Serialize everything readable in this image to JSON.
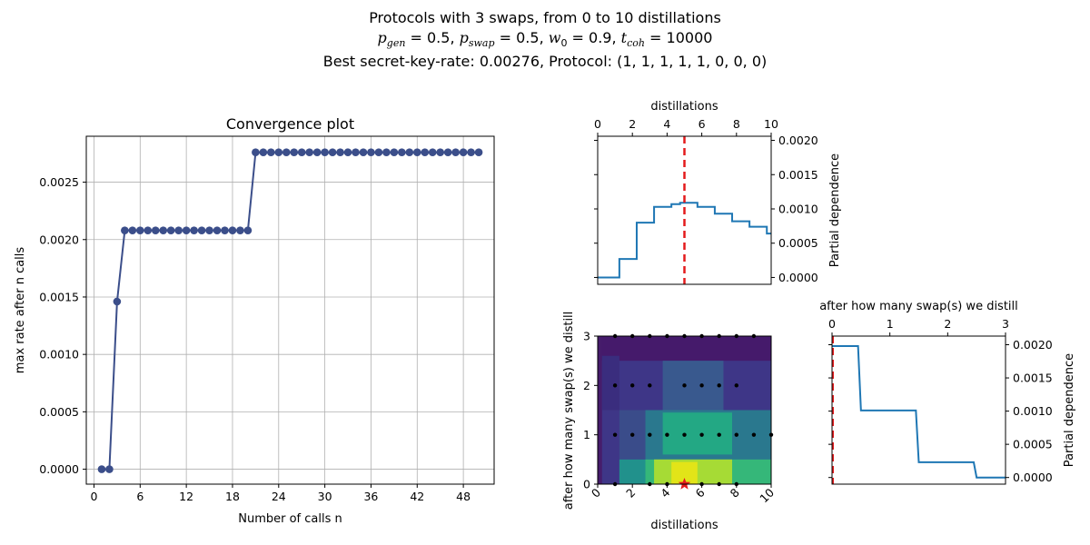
{
  "suptitle": {
    "line1": "Protocols with 3 swaps, from 0 to 10 distillations",
    "line2": "p_gen = 0.5, p_swap = 0.5, w_0 = 0.9, t_coh = 10000",
    "line3": "Best secret-key-rate: 0.00276, Protocol: (1, 1, 1, 1, 1, 0, 0, 0)"
  },
  "chart_data": [
    {
      "type": "line",
      "title": "Convergence plot",
      "xlabel": "Number of calls n",
      "ylabel": "max rate after n calls",
      "x": [
        1,
        2,
        3,
        4,
        5,
        6,
        7,
        8,
        9,
        10,
        11,
        12,
        13,
        14,
        15,
        16,
        17,
        18,
        19,
        20,
        21,
        22,
        23,
        24,
        25,
        26,
        27,
        28,
        29,
        30,
        31,
        32,
        33,
        34,
        35,
        36,
        37,
        38,
        39,
        40,
        41,
        42,
        43,
        44,
        45,
        46,
        47,
        48,
        49,
        50
      ],
      "y": [
        0,
        0,
        0.00146,
        0.00208,
        0.00208,
        0.00208,
        0.00208,
        0.00208,
        0.00208,
        0.00208,
        0.00208,
        0.00208,
        0.00208,
        0.00208,
        0.00208,
        0.00208,
        0.00208,
        0.00208,
        0.00208,
        0.00208,
        0.00276,
        0.00276,
        0.00276,
        0.00276,
        0.00276,
        0.00276,
        0.00276,
        0.00276,
        0.00276,
        0.00276,
        0.00276,
        0.00276,
        0.00276,
        0.00276,
        0.00276,
        0.00276,
        0.00276,
        0.00276,
        0.00276,
        0.00276,
        0.00276,
        0.00276,
        0.00276,
        0.00276,
        0.00276,
        0.00276,
        0.00276,
        0.00276,
        0.00276,
        0.00276
      ],
      "xlim": [
        -1,
        52
      ],
      "ylim": [
        -0.00013,
        0.0029
      ],
      "xticks": [
        0,
        6,
        12,
        18,
        24,
        30,
        36,
        42,
        48
      ],
      "yticks": [
        0,
        0.0005,
        0.001,
        0.0015,
        0.002,
        0.0025
      ],
      "ytick_labels": [
        "0.0000",
        "0.0005",
        "0.0010",
        "0.0015",
        "0.0020",
        "0.0025"
      ],
      "grid": true,
      "color": "#3b4e8a"
    },
    {
      "type": "line",
      "xlabel": "distillations",
      "ylabel": "Partial dependence",
      "x": [
        0,
        1.25,
        1.25,
        2.25,
        2.25,
        2.75,
        2.75,
        3.25,
        3.25,
        3.75,
        3.75,
        4.25,
        4.25,
        4.75,
        4.75,
        5.75,
        5.75,
        6.25,
        6.25,
        6.75,
        6.75,
        7.25,
        7.25,
        7.75,
        7.75,
        8.25,
        8.25,
        8.75,
        8.75,
        9.25,
        9.25,
        9.75,
        9.75,
        10
      ],
      "y": [
        0,
        0,
        0.00027,
        0.00027,
        0.0008,
        0.0008,
        0.0008,
        0.0008,
        0.00103,
        0.00103,
        0.00103,
        0.00103,
        0.00107,
        0.00107,
        0.00109,
        0.00109,
        0.00103,
        0.00103,
        0.00103,
        0.00103,
        0.00093,
        0.00093,
        0.00093,
        0.00093,
        0.00082,
        0.00082,
        0.00082,
        0.00082,
        0.00074,
        0.00074,
        0.00074,
        0.00074,
        0.00064,
        0.00064
      ],
      "xlim": [
        0,
        10
      ],
      "ylim": [
        -0.0001,
        0.00206
      ],
      "xticks": [
        0,
        2,
        4,
        6,
        8,
        10
      ],
      "yticks": [
        0,
        0.0005,
        0.001,
        0.0015,
        0.002
      ],
      "ytick_labels": [
        "0.0000",
        "0.0005",
        "0.0010",
        "0.0015",
        "0.0020"
      ],
      "best_x": 5,
      "color": "#1f77b4",
      "marker_color": "#e41a1c"
    },
    {
      "type": "heatmap",
      "xlabel": "distillations",
      "ylabel": "after how many swap(s) we distill",
      "xlim": [
        0,
        10
      ],
      "ylim": [
        0,
        3
      ],
      "xticks": [
        0,
        2,
        4,
        6,
        8,
        10
      ],
      "yticks": [
        0,
        1,
        2,
        3
      ],
      "regions": [
        {
          "x0": 0,
          "x1": 10,
          "y0": 0,
          "y1": 3,
          "color": "#3e3687"
        },
        {
          "x0": 0,
          "x1": 10,
          "y0": 2.5,
          "y1": 3,
          "color": "#451a6b"
        },
        {
          "x0": 0,
          "x1": 0.25,
          "y0": 0,
          "y1": 3,
          "color": "#461c6b"
        },
        {
          "x0": 0.25,
          "x1": 1.25,
          "y0": 1.5,
          "y1": 2.6,
          "color": "#3a2d7e"
        },
        {
          "x0": 3.75,
          "x1": 7.25,
          "y0": 1.5,
          "y1": 2.5,
          "color": "#39598e"
        },
        {
          "x0": 1.25,
          "x1": 10,
          "y0": 0.5,
          "y1": 1.5,
          "color": "#3a4c8a"
        },
        {
          "x0": 2.75,
          "x1": 10,
          "y0": 0.5,
          "y1": 1.5,
          "color": "#2a788e"
        },
        {
          "x0": 3.75,
          "x1": 7.75,
          "y0": 0.6,
          "y1": 1.45,
          "color": "#23a884"
        },
        {
          "x0": 1.25,
          "x1": 10,
          "y0": 0,
          "y1": 0.5,
          "color": "#21918c"
        },
        {
          "x0": 2.75,
          "x1": 10,
          "y0": 0,
          "y1": 0.5,
          "color": "#35b779"
        },
        {
          "x0": 3.25,
          "x1": 7.75,
          "y0": 0,
          "y1": 0.5,
          "color": "#a6db35"
        },
        {
          "x0": 4.25,
          "x1": 5.75,
          "y0": 0,
          "y1": 0.45,
          "color": "#e2e418"
        }
      ],
      "sample_points": [
        [
          1,
          3
        ],
        [
          2,
          3
        ],
        [
          3,
          3
        ],
        [
          4,
          3
        ],
        [
          5,
          3
        ],
        [
          6,
          3
        ],
        [
          7,
          3
        ],
        [
          8,
          3
        ],
        [
          9,
          3
        ],
        [
          1,
          2
        ],
        [
          2,
          2
        ],
        [
          3,
          2
        ],
        [
          5,
          2
        ],
        [
          6,
          2
        ],
        [
          7,
          2
        ],
        [
          8,
          2
        ],
        [
          1,
          1
        ],
        [
          2,
          1
        ],
        [
          3,
          1
        ],
        [
          4,
          1
        ],
        [
          5,
          1
        ],
        [
          6,
          1
        ],
        [
          7,
          1
        ],
        [
          8,
          1
        ],
        [
          9,
          1
        ],
        [
          10,
          1
        ],
        [
          1,
          0
        ],
        [
          3,
          0
        ],
        [
          4,
          0
        ],
        [
          6,
          0
        ],
        [
          7,
          0
        ],
        [
          8,
          0
        ]
      ],
      "best_point": [
        5,
        0
      ],
      "point_color": "#000000",
      "best_color": "#e41a1c"
    },
    {
      "type": "line",
      "xlabel": "after how many swap(s) we distill",
      "ylabel": "Partial dependence",
      "x": [
        0,
        0.45,
        0.5,
        1.45,
        1.5,
        2.45,
        2.5,
        3
      ],
      "y": [
        0.00198,
        0.00198,
        0.00101,
        0.00101,
        0.00023,
        0.00023,
        0.0,
        0.0
      ],
      "xlim": [
        0,
        3
      ],
      "ylim": [
        -0.0001,
        0.00213
      ],
      "xticks": [
        0,
        1,
        2,
        3
      ],
      "yticks": [
        0,
        0.0005,
        0.001,
        0.0015,
        0.002
      ],
      "ytick_labels": [
        "0.0000",
        "0.0005",
        "0.0010",
        "0.0015",
        "0.0020"
      ],
      "best_x": 0,
      "color": "#1f77b4",
      "marker_color": "#e41a1c"
    }
  ]
}
